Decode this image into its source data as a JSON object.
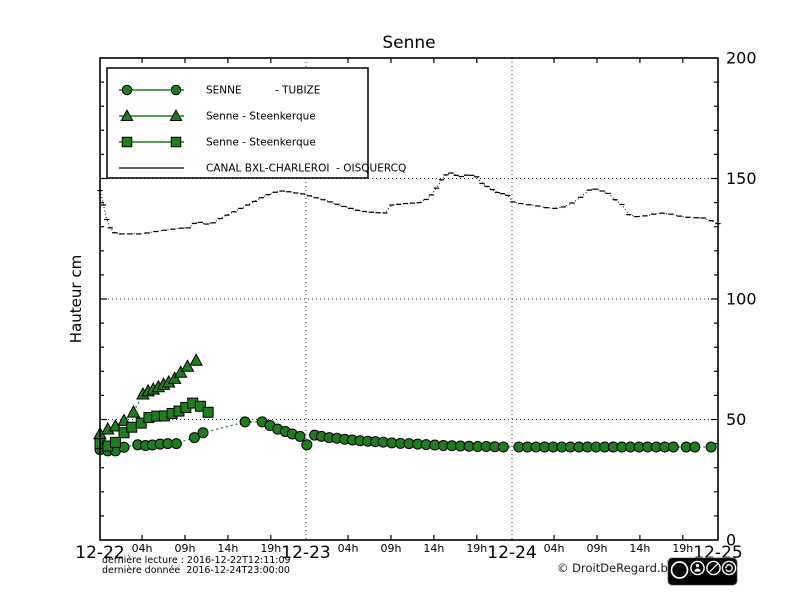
{
  "page": {
    "title": "Senne"
  },
  "chart_data": {
    "type": "line",
    "title": "Senne",
    "xlabel": "",
    "ylabel": "Hauteur cm",
    "ylim": [
      0,
      200
    ],
    "xlim": [
      0,
      72
    ],
    "x_unit": "hours since 2016-12-22 00:00",
    "grid": true,
    "legend_position": "top-left",
    "y_ticks": [
      0,
      50,
      100,
      150,
      200
    ],
    "x_day_labels": [
      {
        "label": "12-22",
        "hour": 0
      },
      {
        "label": "12-23",
        "hour": 24
      },
      {
        "label": "12-24",
        "hour": 48
      },
      {
        "label": "12-25",
        "hour": 72
      }
    ],
    "x_hour_labels": [
      {
        "label": "04h",
        "hour": 4
      },
      {
        "label": "09h",
        "hour": 9
      },
      {
        "label": "14h",
        "hour": 14
      },
      {
        "label": "19h",
        "hour": 19
      },
      {
        "label": "04h",
        "hour": 28
      },
      {
        "label": "09h",
        "hour": 33
      },
      {
        "label": "14h",
        "hour": 38
      },
      {
        "label": "19h",
        "hour": 43
      },
      {
        "label": "04h",
        "hour": 52
      },
      {
        "label": "09h",
        "hour": 57
      },
      {
        "label": "14h",
        "hour": 62
      },
      {
        "label": "19h",
        "hour": 67
      }
    ],
    "series": [
      {
        "name": "SENNE          - TUBIZE",
        "marker": "circle",
        "color": "#1f7d1f",
        "points": [
          [
            0,
            37.5
          ],
          [
            0.9,
            37
          ],
          [
            1.8,
            37
          ],
          [
            2.8,
            38.5
          ],
          [
            4.4,
            39.5
          ],
          [
            5.3,
            39.2
          ],
          [
            6.1,
            39.4
          ],
          [
            7,
            39.8
          ],
          [
            7.9,
            40
          ],
          [
            8.9,
            40
          ],
          [
            11,
            42.5
          ],
          [
            12,
            44.5
          ],
          [
            16.9,
            49
          ],
          [
            18.9,
            49
          ],
          [
            19.8,
            47.5
          ],
          [
            20.7,
            46
          ],
          [
            21.6,
            45
          ],
          [
            22.4,
            44
          ],
          [
            23.3,
            43
          ],
          [
            24.1,
            39.5
          ],
          [
            25,
            43.5
          ],
          [
            25.8,
            43
          ],
          [
            26.7,
            42.5
          ],
          [
            27.6,
            42.2
          ],
          [
            28.5,
            41.8
          ],
          [
            29.4,
            41.5
          ],
          [
            30.3,
            41.2
          ],
          [
            31.2,
            41
          ],
          [
            32.1,
            40.8
          ],
          [
            33,
            40.6
          ],
          [
            34,
            40.3
          ],
          [
            35,
            40.1
          ],
          [
            36,
            40
          ],
          [
            37,
            39.8
          ],
          [
            38,
            39.6
          ],
          [
            39,
            39.4
          ],
          [
            40,
            39.2
          ],
          [
            41,
            39.1
          ],
          [
            42,
            39
          ],
          [
            43,
            38.9
          ],
          [
            44,
            38.8
          ],
          [
            45,
            38.8
          ],
          [
            46,
            38.7
          ],
          [
            47,
            38.6
          ],
          [
            48.8,
            38.6
          ],
          [
            49.8,
            38.6
          ],
          [
            50.8,
            38.6
          ],
          [
            51.8,
            38.6
          ],
          [
            52.8,
            38.6
          ],
          [
            53.8,
            38.6
          ],
          [
            54.8,
            38.6
          ],
          [
            55.8,
            38.6
          ],
          [
            56.8,
            38.6
          ],
          [
            57.8,
            38.6
          ],
          [
            58.8,
            38.6
          ],
          [
            59.8,
            38.6
          ],
          [
            60.8,
            38.6
          ],
          [
            61.8,
            38.6
          ],
          [
            62.8,
            38.6
          ],
          [
            63.8,
            38.6
          ],
          [
            64.8,
            38.6
          ],
          [
            65.8,
            38.6
          ],
          [
            66.8,
            38.6
          ],
          [
            68.3,
            38.6
          ],
          [
            69.3,
            38.6
          ],
          [
            71.2,
            38.6
          ]
        ]
      },
      {
        "name": "Senne - Steenkerque",
        "marker": "triangle",
        "color": "#1f7d1f",
        "points": [
          [
            0,
            44
          ],
          [
            0.9,
            46
          ],
          [
            1.8,
            47.2
          ],
          [
            2.8,
            49.5
          ],
          [
            3.9,
            53
          ],
          [
            5,
            60.5
          ],
          [
            5.6,
            61.8
          ],
          [
            6.2,
            62.5
          ],
          [
            6.8,
            63.5
          ],
          [
            7.4,
            64.5
          ],
          [
            8,
            65.5
          ],
          [
            8.7,
            67
          ],
          [
            9.4,
            69.5
          ],
          [
            10.2,
            72
          ],
          [
            11.2,
            74.5
          ]
        ]
      },
      {
        "name": "Senne - Steenkerque",
        "marker": "square",
        "color": "#1f7d1f",
        "points": [
          [
            0,
            40
          ],
          [
            0.9,
            39
          ],
          [
            1.8,
            40.5
          ],
          [
            2.8,
            44.5
          ],
          [
            3.7,
            46.8
          ],
          [
            4.8,
            48.5
          ],
          [
            5.7,
            50.8
          ],
          [
            6.6,
            51.4
          ],
          [
            7.5,
            51.5
          ],
          [
            8.4,
            52.5
          ],
          [
            9.2,
            53.5
          ],
          [
            10,
            55
          ],
          [
            10.8,
            56.8
          ],
          [
            11.7,
            55.5
          ],
          [
            12.6,
            53
          ]
        ]
      },
      {
        "name": "CANAL BXL-CHARLEROI  - OISQUERCQ",
        "marker": "dash",
        "color": "#000000",
        "points": [
          [
            0,
            145
          ],
          [
            0.4,
            139
          ],
          [
            0.8,
            133
          ],
          [
            1.2,
            129.5
          ],
          [
            1.7,
            127.5
          ],
          [
            2.5,
            127
          ],
          [
            3.5,
            127
          ],
          [
            4.5,
            127
          ],
          [
            5.5,
            127.4
          ],
          [
            6.5,
            128
          ],
          [
            7.5,
            128.5
          ],
          [
            8.5,
            129
          ],
          [
            9.5,
            129.4
          ],
          [
            10.3,
            129.5
          ],
          [
            11,
            131.4
          ],
          [
            11.7,
            131.8
          ],
          [
            12.4,
            131.1
          ],
          [
            13.2,
            131.6
          ],
          [
            14,
            133.4
          ],
          [
            14.8,
            134.8
          ],
          [
            15.6,
            136.2
          ],
          [
            16.4,
            137.6
          ],
          [
            17.2,
            139
          ],
          [
            18,
            140.5
          ],
          [
            18.8,
            142
          ],
          [
            19.6,
            143.3
          ],
          [
            20.4,
            144.3
          ],
          [
            21.2,
            144.8
          ],
          [
            22,
            144.5
          ],
          [
            22.8,
            144
          ],
          [
            23.6,
            143.6
          ],
          [
            24.4,
            142.8
          ],
          [
            25.2,
            142
          ],
          [
            26,
            141.2
          ],
          [
            26.8,
            140.3
          ],
          [
            27.6,
            139.3
          ],
          [
            28.4,
            138.4
          ],
          [
            29.2,
            137.6
          ],
          [
            30,
            136.8
          ],
          [
            30.8,
            136.3
          ],
          [
            31.6,
            136
          ],
          [
            32.4,
            135.8
          ],
          [
            33.2,
            135.7
          ],
          [
            34,
            139
          ],
          [
            34.8,
            139.3
          ],
          [
            35.6,
            139.6
          ],
          [
            36.4,
            139.8
          ],
          [
            37.2,
            140
          ],
          [
            38,
            141.3
          ],
          [
            38.6,
            143.2
          ],
          [
            39.2,
            146
          ],
          [
            39.8,
            149.5
          ],
          [
            40.3,
            151.5
          ],
          [
            40.9,
            152.3
          ],
          [
            41.5,
            151.3
          ],
          [
            42.1,
            150.8
          ],
          [
            42.7,
            151.4
          ],
          [
            43.3,
            151.3
          ],
          [
            43.9,
            150.7
          ],
          [
            44.5,
            148
          ],
          [
            45.1,
            146.7
          ],
          [
            45.7,
            145.4
          ],
          [
            46.3,
            144.2
          ],
          [
            46.9,
            143.7
          ],
          [
            47.5,
            143
          ],
          [
            48.1,
            140.3
          ],
          [
            49,
            139.6
          ],
          [
            50,
            139.1
          ],
          [
            51,
            138.6
          ],
          [
            52,
            137.9
          ],
          [
            53,
            137.6
          ],
          [
            54,
            138.2
          ],
          [
            55,
            139.8
          ],
          [
            56,
            142.2
          ],
          [
            57,
            145.2
          ],
          [
            57.7,
            145.6
          ],
          [
            58.5,
            144.8
          ],
          [
            59.2,
            143.8
          ],
          [
            60,
            141.2
          ],
          [
            60.8,
            139.2
          ],
          [
            61.6,
            135
          ],
          [
            62.5,
            134.2
          ],
          [
            63.5,
            134.5
          ],
          [
            64.5,
            135.2
          ],
          [
            65.5,
            135.6
          ],
          [
            66.5,
            135.2
          ],
          [
            67.5,
            134.4
          ],
          [
            68.5,
            133.9
          ],
          [
            69.5,
            133.7
          ],
          [
            70.3,
            133.6
          ],
          [
            71.2,
            132.5
          ],
          [
            72,
            131.3
          ]
        ]
      }
    ]
  },
  "footer": {
    "last_reading": "dernière lecture : 2016-12-22T12:11:09",
    "last_data": "dernière donnée  2016-12-24T23:00:00",
    "copyright": "© DroitDeRegard.be",
    "cc_badge": {
      "cc_label": "CC",
      "labels": [
        "BY",
        "NC",
        "SA"
      ]
    }
  },
  "colors": {
    "series_green": "#1f7d1f",
    "canal_black": "#000000",
    "background": "#ffffff"
  }
}
